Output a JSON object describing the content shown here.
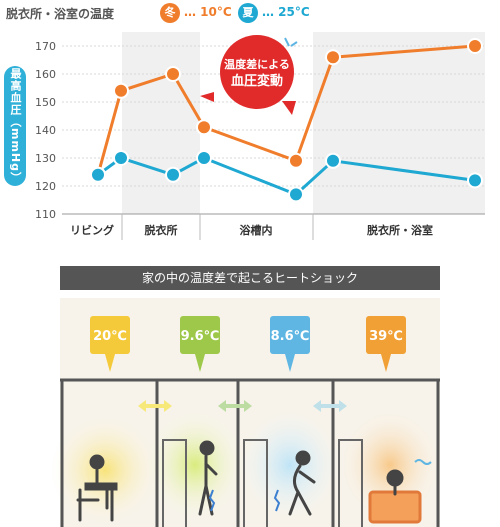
{
  "legend": {
    "title": "脱衣所・浴室の温度",
    "winter_badge": "冬",
    "winter_value": "… 10°C",
    "summer_badge": "夏",
    "summer_value": "… 25°C",
    "winter_color": "#f07d2c",
    "summer_color": "#1ea8d2"
  },
  "chart_data": {
    "type": "line",
    "ylabel": "最高血圧（mmHg）",
    "ylim": [
      110,
      175
    ],
    "yticks": [
      110,
      120,
      130,
      140,
      150,
      160,
      170
    ],
    "zones": [
      "リビング",
      "脱衣所",
      "浴槽内",
      "脱衣所・浴室"
    ],
    "x": [
      0,
      1,
      2,
      3,
      4,
      5,
      6
    ],
    "series": [
      {
        "values": [
          124,
          154,
          160,
          141,
          129,
          166,
          170
        ],
        "color": "#f07d2c"
      },
      {
        "values": [
          124,
          130,
          124,
          130,
          117,
          129,
          122
        ],
        "color": "#1ea8d2"
      }
    ],
    "annotation": "温度差による\n血圧変動"
  },
  "bottom": {
    "title": "家の中の温度差で起こるヒートショック",
    "rooms": [
      {
        "temp": "20℃",
        "color": "#f4c93a"
      },
      {
        "temp": "9.6℃",
        "color": "#9dc84a"
      },
      {
        "temp": "8.6℃",
        "color": "#5fb6e3"
      },
      {
        "temp": "39℃",
        "color": "#f0a035"
      }
    ]
  }
}
